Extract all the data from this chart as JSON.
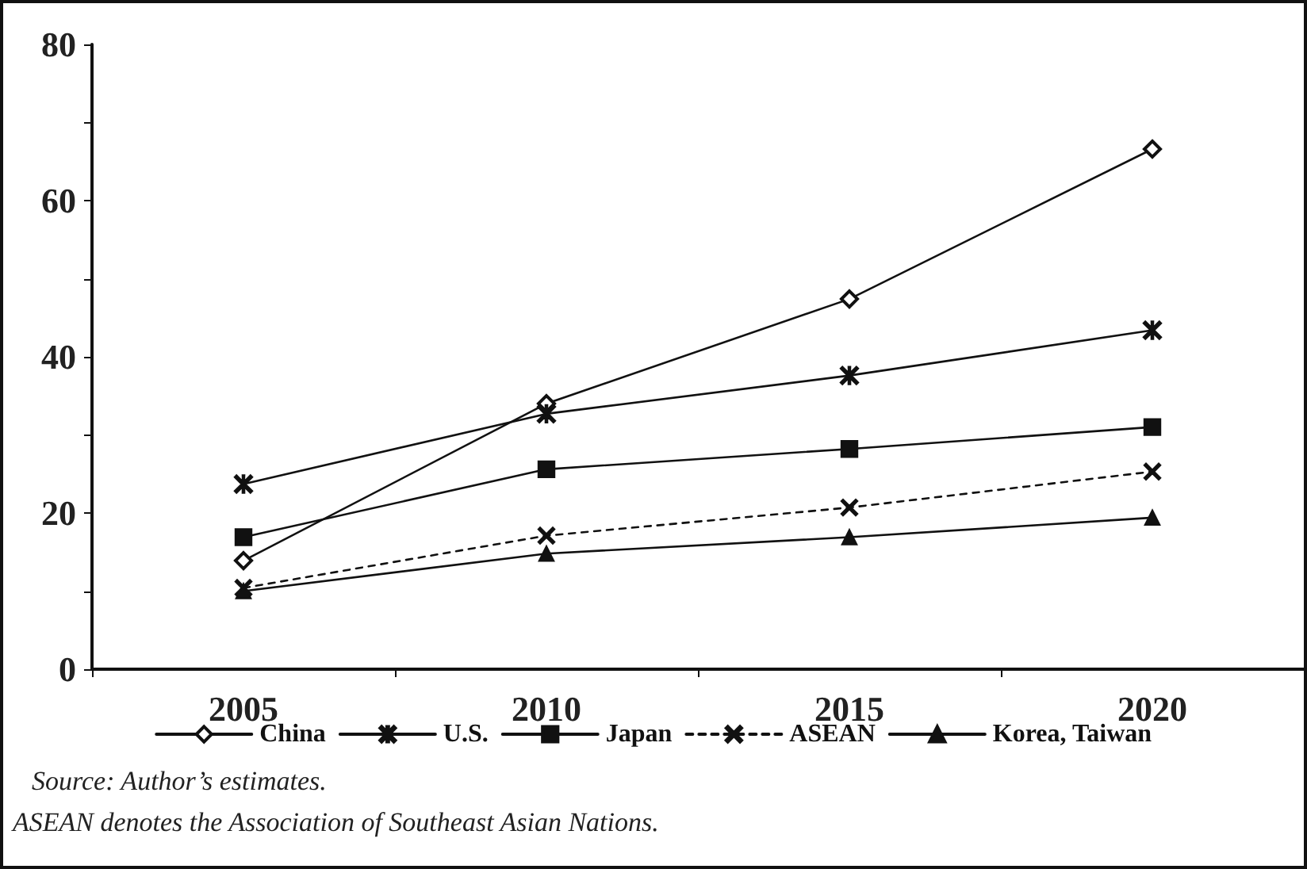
{
  "chart_data": {
    "type": "line",
    "categories": [
      "2005",
      "2010",
      "2015",
      "2020"
    ],
    "series": [
      {
        "name": "China",
        "color": "#111111",
        "marker": "diamond",
        "values": [
          13.9,
          34.0,
          47.4,
          66.6
        ]
      },
      {
        "name": "U.S.",
        "color": "#111111",
        "marker": "star",
        "values": [
          23.7,
          32.7,
          37.6,
          43.4
        ]
      },
      {
        "name": "Japan",
        "color": "#111111",
        "marker": "square",
        "values": [
          16.9,
          25.6,
          28.2,
          31.0
        ]
      },
      {
        "name": "ASEAN",
        "color": "#111111",
        "marker": "cross",
        "line_style": "dashed",
        "values": [
          10.4,
          17.1,
          20.7,
          25.3
        ]
      },
      {
        "name": "Korea, Taiwan",
        "color": "#111111",
        "marker": "triangle",
        "values": [
          10.0,
          14.8,
          16.9,
          19.4
        ]
      }
    ],
    "ylim": [
      0,
      80
    ],
    "yticks": [
      0,
      {
        "value": 10,
        "label": null
      },
      20,
      {
        "value": 30,
        "label": null
      },
      40,
      {
        "value": 50,
        "label": null
      },
      60,
      {
        "value": 70,
        "label": null
      },
      80
    ],
    "grid": false,
    "legend": "bottom",
    "line_style": "solid",
    "annotations": [
      "Source: Author’s estimates.",
      "ASEAN denotes the Association of Southeast Asian Nations."
    ]
  }
}
